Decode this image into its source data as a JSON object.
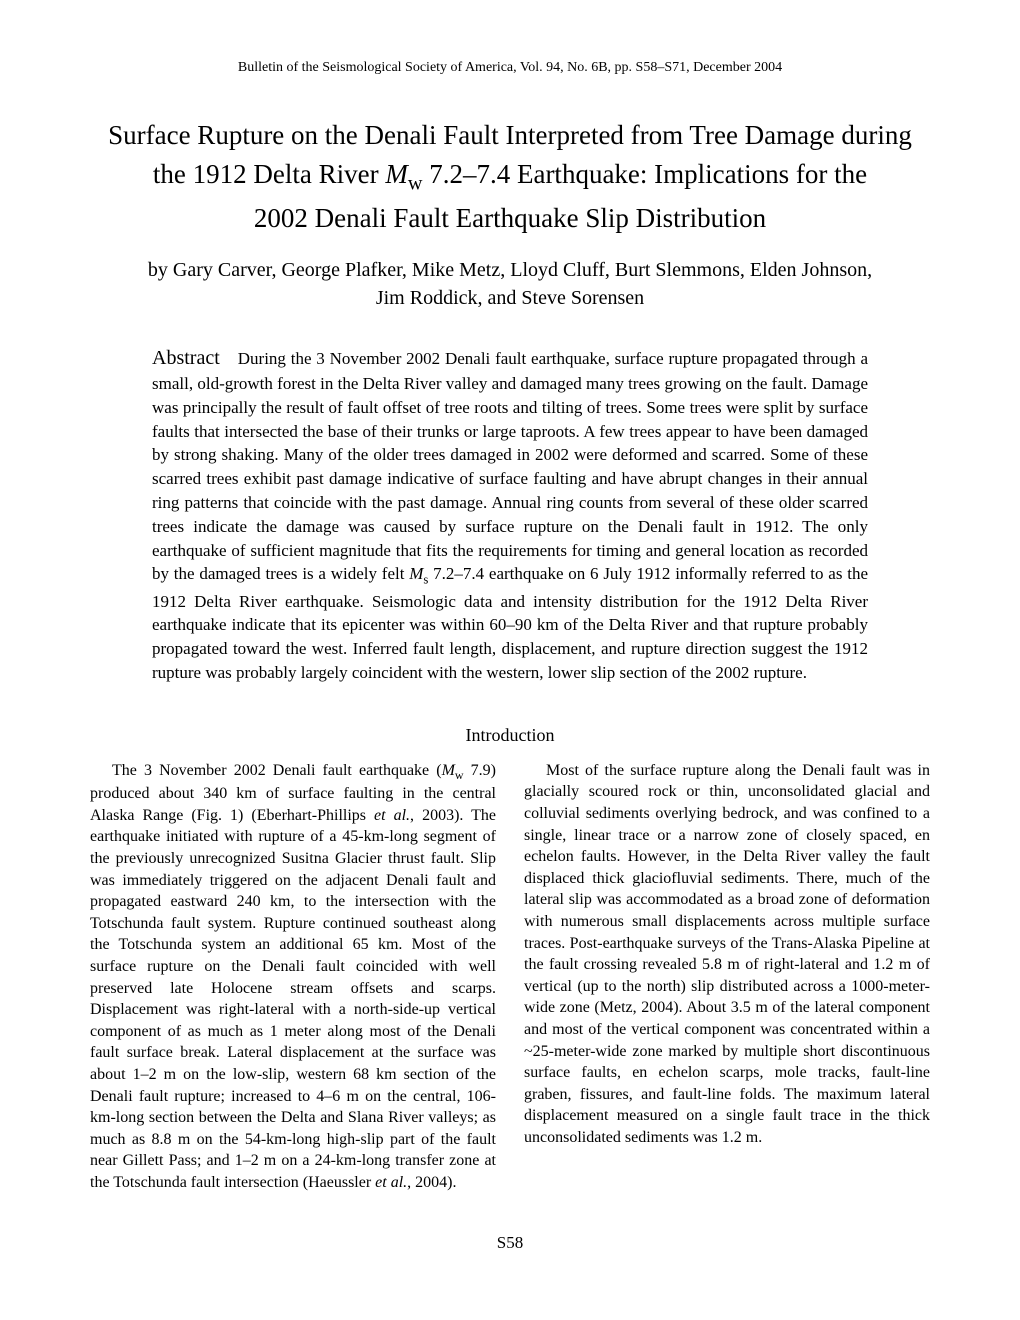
{
  "header": {
    "journal_line": "Bulletin of the Seismological Society of America, Vol. 94, No. 6B, pp. S58–S71, December 2004"
  },
  "title": {
    "line1": "Surface Rupture on the Denali Fault Interpreted from Tree Damage during",
    "line2_pre": "the 1912 Delta River ",
    "line2_mid_var": "M",
    "line2_mid_sub": "w",
    "line2_mid_post": " 7.2–7.4 Earthquake: Implications for the",
    "line3": "2002 Denali Fault Earthquake Slip Distribution"
  },
  "authors": {
    "line1": "by Gary Carver, George Plafker, Mike Metz, Lloyd Cluff, Burt Slemmons, Elden Johnson,",
    "line2": "Jim Roddick, and Steve Sorensen"
  },
  "abstract": {
    "label": "Abstract",
    "text_part1": "During the 3 November 2002 Denali fault earthquake, surface rupture propagated through a small, old-growth forest in the Delta River valley and damaged many trees growing on the fault. Damage was principally the result of fault offset of tree roots and tilting of trees. Some trees were split by surface faults that intersected the base of their trunks or large taproots. A few trees appear to have been damaged by strong shaking. Many of the older trees damaged in 2002 were deformed and scarred. Some of these scarred trees exhibit past damage indicative of surface faulting and have abrupt changes in their annual ring patterns that coincide with the past damage. Annual ring counts from several of these older scarred trees indicate the damage was caused by surface rupture on the Denali fault in 1912. The only earthquake of sufficient magnitude that fits the requirements for timing and general location as recorded by the damaged trees is a widely felt ",
    "text_ms_var": "M",
    "text_ms_sub": "s",
    "text_part2": " 7.2–7.4 earthquake on 6 July 1912 informally referred to as the 1912 Delta River earthquake. Seismologic data and intensity distribution for the 1912 Delta River earthquake indicate that its epicenter was within 60–90 km of the Delta River and that rupture probably propagated toward the west. Inferred fault length, displacement, and rupture direction suggest the 1912 rupture was probably largely coincident with the western, lower slip section of the 2002 rupture."
  },
  "section": {
    "heading": "Introduction"
  },
  "col_left": {
    "para1_pre": "The 3 November 2002 Denali fault earthquake (",
    "para1_mw_var": "M",
    "para1_mw_sub": "w",
    "para1_post": " 7.9) produced about 340 km of surface faulting in the central Alaska Range (Fig. 1) (Eberhart-Phillips ",
    "para1_etal": "et al.",
    "para1_post2": ", 2003). The earthquake initiated with rupture of a 45-km-long segment of the previously unrecognized Susitna Glacier thrust fault. Slip was immediately triggered on the adjacent Denali fault and propagated eastward 240 km, to the intersection with the Totschunda fault system. Rupture continued southeast along the Totschunda system an additional 65 km. Most of the surface rupture on the Denali fault coincided with well preserved late Holocene stream offsets and scarps. Displacement was right-lateral with a north-side-up vertical component of as much as 1 meter along most of the Denali fault surface break. Lateral displacement at the surface was about 1–2 m on the low-slip, western 68 km section of the Denali fault rupture; increased to 4–6 m on the central, 106-km-long section between the Delta and Slana River valleys; as much as 8.8 m on the 54-km-long high-slip part of the fault near Gillett Pass; and 1–2 m on a 24-km-long transfer zone at the Totschunda fault intersection (Haeussler ",
    "para1_etal2": "et al.",
    "para1_end": ", 2004)."
  },
  "col_right": {
    "para1": "Most of the surface rupture along the Denali fault was in glacially scoured rock or thin, unconsolidated glacial and colluvial sediments overlying bedrock, and was confined to a single, linear trace or a narrow zone of closely spaced, en echelon faults. However, in the Delta River valley the fault displaced thick glaciofluvial sediments. There, much of the lateral slip was accommodated as a broad zone of deformation with numerous small displacements across multiple surface traces. Post-earthquake surveys of the Trans-Alaska Pipeline at the fault crossing revealed 5.8 m of right-lateral and 1.2 m of vertical (up to the north) slip distributed across a 1000-meter-wide zone (Metz, 2004). About 3.5 m of the lateral component and most of the vertical component was concentrated within a ~25-meter-wide zone marked by multiple short discontinuous surface faults, en echelon scarps, mole tracks, fault-line graben, fissures, and fault-line folds. The maximum lateral displacement measured on a single fault trace in the thick unconsolidated sediments was 1.2 m."
  },
  "footer": {
    "page_number": "S58"
  }
}
